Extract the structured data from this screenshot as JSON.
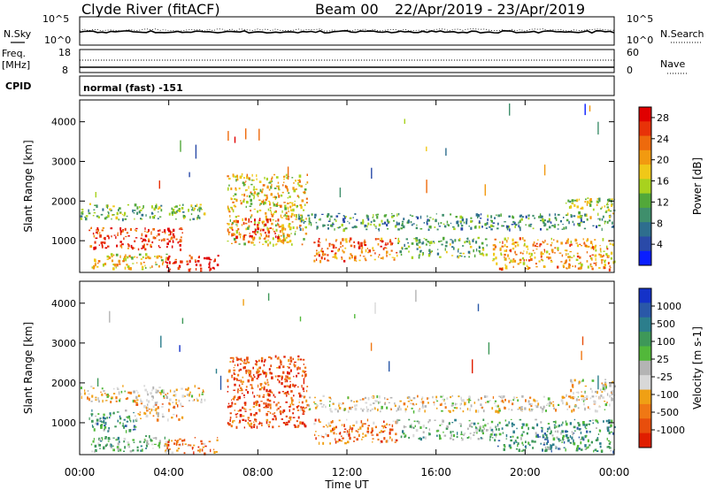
{
  "header": {
    "station": "Clyde River (fitACF)",
    "beam": "Beam 00",
    "date_range": "22/Apr/2019 - 23/Apr/2019"
  },
  "top_panels": {
    "nsky_label": "N.Sky",
    "nsky_ticks": [
      "10^5",
      "10^0"
    ],
    "nsearch_label": "N.Search",
    "nsearch_ticks": [
      "10^5",
      "10^0"
    ],
    "freq_label": "Freq.",
    "freq_unit": "[MHz]",
    "freq_ticks": [
      "18",
      "8"
    ],
    "nave_label": "Nave",
    "nave_ticks": [
      "60",
      "0"
    ],
    "cpid_label": "CPID",
    "cpid_value": "normal (fast) -151"
  },
  "colors": {
    "power": [
      "#0a1eff",
      "#2a4aa8",
      "#2e6e8e",
      "#3f8f6c",
      "#52a83a",
      "#a8d21e",
      "#f0c818",
      "#f29a10",
      "#ee6a0c",
      "#e83208",
      "#e00000"
    ],
    "velocity": [
      "#1432c8",
      "#2a58a8",
      "#2c7e8c",
      "#3e9858",
      "#52b83a",
      "#b4b4b4",
      "#d8d8d8",
      "#f0a014",
      "#f07814",
      "#e84e0c",
      "#e01e00"
    ]
  },
  "chart_data": [
    {
      "type": "heatmap",
      "name": "power",
      "ylabel": "Slant Range [km]",
      "y_ticks": [
        "1000",
        "2000",
        "3000",
        "4000"
      ],
      "ylim": [
        200,
        4550
      ],
      "x_ticks": [
        "00:00",
        "04:00",
        "08:00",
        "12:00",
        "16:00",
        "20:00",
        "00:00"
      ],
      "xlim_hours": [
        0,
        24
      ],
      "colorbar_label": "Power [dB]",
      "colorbar_ticks": [
        "4",
        "8",
        "12",
        "16",
        "20",
        "24",
        "28"
      ],
      "colorbar_range": [
        0,
        30
      ],
      "regions": [
        {
          "t0": 0.0,
          "t1": 5.6,
          "r0": 1550,
          "r1": 1950,
          "level": 4
        },
        {
          "t0": 0.4,
          "t1": 4.6,
          "r0": 800,
          "r1": 1350,
          "level": 9
        },
        {
          "t0": 0.5,
          "t1": 4.0,
          "r0": 300,
          "r1": 700,
          "level": 6
        },
        {
          "t0": 3.8,
          "t1": 6.2,
          "r0": 250,
          "r1": 650,
          "level": 10
        },
        {
          "t0": 6.6,
          "t1": 10.2,
          "r0": 900,
          "r1": 2700,
          "level": 6
        },
        {
          "t0": 6.8,
          "t1": 9.0,
          "r0": 1100,
          "r1": 1600,
          "level": 9
        },
        {
          "t0": 9.8,
          "t1": 24.0,
          "r0": 1300,
          "r1": 1700,
          "level": 3
        },
        {
          "t0": 10.5,
          "t1": 14.2,
          "r0": 500,
          "r1": 1100,
          "level": 8
        },
        {
          "t0": 14.2,
          "t1": 18.5,
          "r0": 600,
          "r1": 1100,
          "level": 4
        },
        {
          "t0": 18.5,
          "t1": 24.0,
          "r0": 300,
          "r1": 1100,
          "level": 7
        },
        {
          "t0": 21.8,
          "t1": 24.0,
          "r0": 1600,
          "r1": 2100,
          "level": 5
        }
      ]
    },
    {
      "type": "heatmap",
      "name": "velocity",
      "ylabel": "Slant Range [km]",
      "y_ticks": [
        "1000",
        "2000",
        "3000",
        "4000"
      ],
      "ylim": [
        200,
        4550
      ],
      "x_ticks": [
        "00:00",
        "04:00",
        "08:00",
        "12:00",
        "16:00",
        "20:00",
        "00:00"
      ],
      "xlim_hours": [
        0,
        24
      ],
      "xlabel": "Time UT",
      "colorbar_label": "Velocity [m s-1]",
      "colorbar_ticks": [
        "1000",
        "500",
        "100",
        "25",
        "-25",
        "-100",
        "-500",
        "-1000"
      ],
      "colorbar_range": [
        -1300,
        1300
      ],
      "regions": [
        {
          "t0": 0.0,
          "t1": 5.6,
          "r0": 1550,
          "r1": 1950,
          "level": 6
        },
        {
          "t0": 0.4,
          "t1": 2.5,
          "r0": 800,
          "r1": 1350,
          "level": 3
        },
        {
          "t0": 2.5,
          "t1": 4.6,
          "r0": 1100,
          "r1": 1600,
          "level": 7
        },
        {
          "t0": 0.5,
          "t1": 4.0,
          "r0": 300,
          "r1": 700,
          "level": 4
        },
        {
          "t0": 3.8,
          "t1": 6.2,
          "r0": 250,
          "r1": 650,
          "level": 8
        },
        {
          "t0": 6.6,
          "t1": 10.2,
          "r0": 900,
          "r1": 2700,
          "level": 9
        },
        {
          "t0": 9.8,
          "t1": 24.0,
          "r0": 1300,
          "r1": 1700,
          "level": 6
        },
        {
          "t0": 10.5,
          "t1": 14.2,
          "r0": 500,
          "r1": 1100,
          "level": 8
        },
        {
          "t0": 14.2,
          "t1": 18.5,
          "r0": 600,
          "r1": 1100,
          "level": 4
        },
        {
          "t0": 18.5,
          "t1": 24.0,
          "r0": 300,
          "r1": 1100,
          "level": 3
        },
        {
          "t0": 21.8,
          "t1": 24.0,
          "r0": 1600,
          "r1": 2100,
          "level": 6
        }
      ]
    }
  ]
}
